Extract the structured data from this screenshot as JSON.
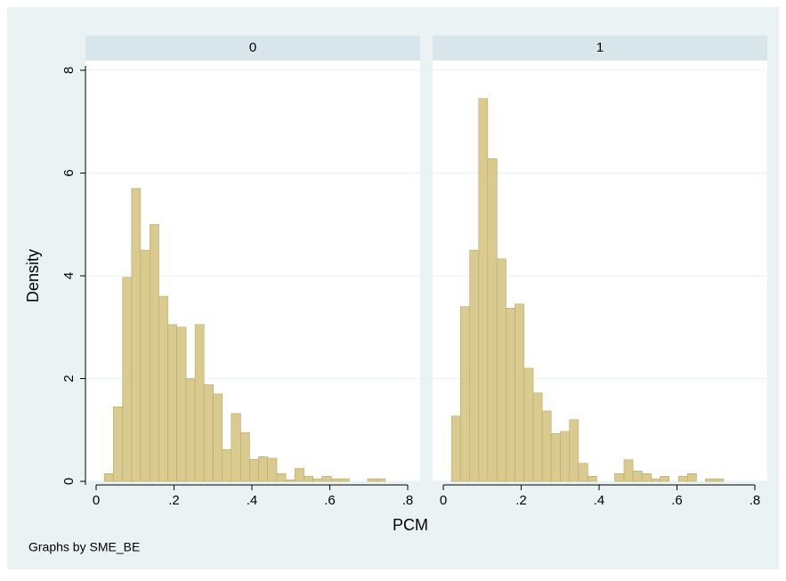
{
  "chart_data": {
    "type": "histogram",
    "y_label": "Density",
    "x_label": "PCM",
    "note": "Graphs by SME_BE",
    "color": "#d9cb90",
    "edge_color": "#b9a862",
    "xlim": [
      -0.0274,
      0.832
    ],
    "ylim": [
      0,
      8.19
    ],
    "xticks": [
      0,
      {
        "value": 0.2,
        "label": ".2"
      },
      {
        "value": 0.4,
        "label": ".4"
      },
      {
        "value": 0.6,
        "label": ".6"
      },
      {
        "value": 0.8,
        "label": ".8"
      }
    ],
    "yticks": [
      0,
      2,
      4,
      6,
      8
    ],
    "grid": true,
    "panels": [
      {
        "title": "0",
        "bins": [
          0.021,
          0.044,
          0.068,
          0.091,
          0.114,
          0.138,
          0.161,
          0.184,
          0.207,
          0.231,
          0.254,
          0.277,
          0.301,
          0.324,
          0.347,
          0.371,
          0.394,
          0.417,
          0.44,
          0.464,
          0.487,
          0.51,
          0.534,
          0.557,
          0.58,
          0.604,
          0.627,
          0.65,
          0.673,
          0.697,
          0.72,
          0.743
        ],
        "values": [
          0.15,
          1.45,
          3.97,
          5.7,
          4.5,
          5.0,
          3.6,
          3.05,
          3.0,
          2.0,
          3.05,
          1.88,
          1.7,
          0.62,
          1.32,
          0.95,
          0.43,
          0.48,
          0.45,
          0.15,
          0.03,
          0.25,
          0.1,
          0.05,
          0.1,
          0.05,
          0.05,
          0,
          0,
          0.05,
          0.05
        ]
      },
      {
        "title": "1",
        "bins": [
          0.021,
          0.044,
          0.068,
          0.091,
          0.114,
          0.138,
          0.161,
          0.184,
          0.207,
          0.231,
          0.254,
          0.277,
          0.301,
          0.324,
          0.347,
          0.371,
          0.394,
          0.417,
          0.44,
          0.464,
          0.487,
          0.51,
          0.534,
          0.557,
          0.58,
          0.604,
          0.627,
          0.65,
          0.673,
          0.697,
          0.72
        ],
        "values": [
          1.27,
          3.4,
          4.5,
          7.45,
          6.28,
          4.33,
          3.37,
          3.45,
          2.2,
          1.72,
          1.37,
          0.93,
          0.97,
          1.2,
          0.35,
          0.1,
          0,
          0,
          0.15,
          0.42,
          0.2,
          0.15,
          0.05,
          0.1,
          0,
          0.1,
          0.15,
          0,
          0.05,
          0.05
        ]
      }
    ]
  }
}
